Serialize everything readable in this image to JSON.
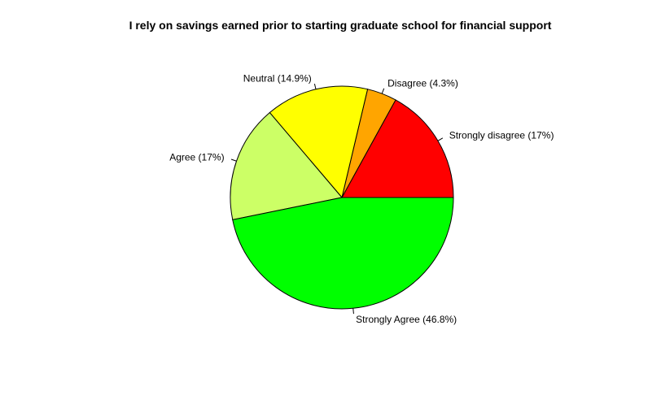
{
  "chart_data": {
    "type": "pie",
    "title": "I rely on savings earned prior to starting graduate school for financial support",
    "start_angle_deg": 0,
    "direction": "counterclockwise",
    "slices": [
      {
        "label": "Strongly disagree (17%)",
        "value": 17.0,
        "color": "#FF0000"
      },
      {
        "label": "Disagree (4.3%)",
        "value": 4.3,
        "color": "#FFA500"
      },
      {
        "label": "Neutral (14.9%)",
        "value": 14.9,
        "color": "#FFFF00"
      },
      {
        "label": "Agree (17%)",
        "value": 17.0,
        "color": "#CCFF66"
      },
      {
        "label": "Strongly Agree (46.8%)",
        "value": 46.8,
        "color": "#00FF00"
      }
    ]
  }
}
